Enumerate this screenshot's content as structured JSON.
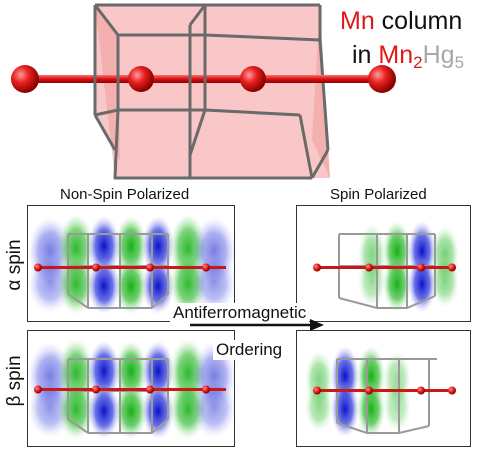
{
  "header": {
    "line1_element": "Mn",
    "line1_rest": " column",
    "line2_prefix": "in ",
    "formula_el1": "Mn",
    "formula_sub1": "2",
    "formula_el2": "Hg",
    "formula_sub2": "5"
  },
  "panels": {
    "left_title": "Non-Spin Polarized",
    "right_title": "Spin Polarized"
  },
  "rows": {
    "alpha": {
      "label": "α spin"
    },
    "beta": {
      "label": "β spin"
    }
  },
  "transition": {
    "line1": "Antiferromagnetic",
    "line2": "Ordering"
  },
  "colors": {
    "mn_atom": "#e01818",
    "positive_lobe": "#22b322",
    "negative_lobe": "#2a35d6",
    "cell_face": "#f4a8a8",
    "cell_edge": "#6a6a6a"
  }
}
